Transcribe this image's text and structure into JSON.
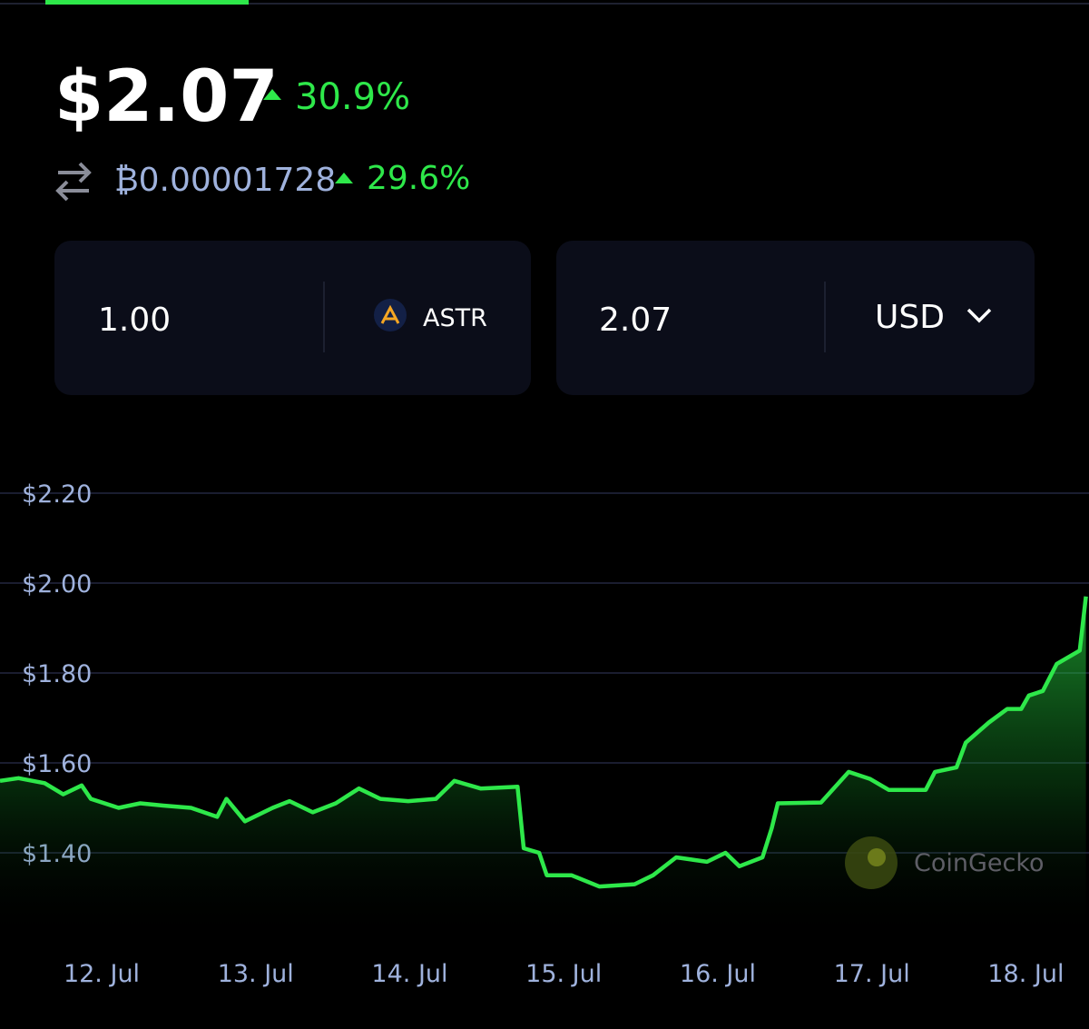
{
  "header": {
    "price": "$2.07",
    "price_change": "30.9%",
    "btc_price": "₿0.00001728",
    "btc_change": "29.6%"
  },
  "converter": {
    "amount": "1.00",
    "coin": "ASTR",
    "converted": "2.07",
    "currency": "USD"
  },
  "watermark": "CoinGecko",
  "chart_data": {
    "type": "line",
    "x": [
      11.34,
      11.46,
      11.63,
      11.75,
      11.87,
      11.93,
      12.11,
      12.25,
      12.4,
      12.58,
      12.75,
      12.81,
      12.93,
      13.11,
      13.22,
      13.37,
      13.52,
      13.67,
      13.81,
      13.99,
      14.17,
      14.29,
      14.46,
      14.7,
      14.74,
      14.84,
      14.89,
      15.05,
      15.23,
      15.46,
      15.58,
      15.73,
      15.93,
      16.05,
      16.14,
      16.29,
      16.35,
      16.39,
      16.67,
      16.85,
      16.99,
      17.11,
      17.35,
      17.41,
      17.55,
      17.61,
      17.76,
      17.88,
      17.97,
      18.02,
      18.11,
      18.2,
      18.35,
      18.39
    ],
    "series": [
      {
        "color": "#2ee84a",
        "values": [
          1.56,
          1.566,
          1.555,
          1.53,
          1.55,
          1.52,
          1.5,
          1.51,
          1.505,
          1.5,
          1.48,
          1.52,
          1.47,
          1.5,
          1.515,
          1.49,
          1.51,
          1.543,
          1.52,
          1.515,
          1.52,
          1.56,
          1.543,
          1.547,
          1.41,
          1.4,
          1.35,
          1.35,
          1.325,
          1.33,
          1.35,
          1.39,
          1.38,
          1.4,
          1.37,
          1.39,
          1.455,
          1.51,
          1.512,
          1.58,
          1.564,
          1.54,
          1.54,
          1.58,
          1.59,
          1.645,
          1.69,
          1.72,
          1.72,
          1.75,
          1.76,
          1.82,
          1.85,
          1.97
        ]
      }
    ],
    "xlim": [
      11.34,
      18.41
    ],
    "xticks": [
      {
        "value": 12,
        "label": "12. Jul"
      },
      {
        "value": 13,
        "label": "13. Jul"
      },
      {
        "value": 14,
        "label": "14. Jul"
      },
      {
        "value": 15,
        "label": "15. Jul"
      },
      {
        "value": 16,
        "label": "16. Jul"
      },
      {
        "value": 17,
        "label": "17. Jul"
      },
      {
        "value": 18,
        "label": "18. Jul"
      }
    ],
    "ylim": [
      1.2,
      2.3
    ],
    "yticks": [
      {
        "value": 1.4,
        "label": "$1.40"
      },
      {
        "value": 1.6,
        "label": "$1.60"
      },
      {
        "value": 1.8,
        "label": "$1.80"
      },
      {
        "value": 2.0,
        "label": "$2.00"
      },
      {
        "value": 2.2,
        "label": "$2.20"
      }
    ],
    "grid": true
  }
}
